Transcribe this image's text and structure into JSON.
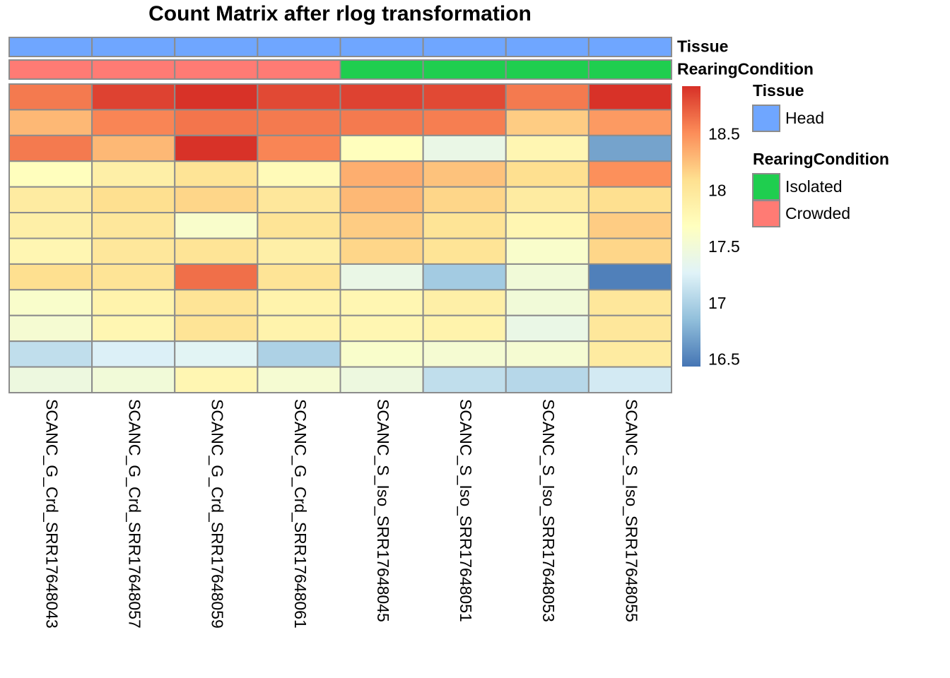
{
  "chart_data": {
    "type": "heatmap",
    "title": "Count Matrix after rlog transformation",
    "columns": [
      "SCANC_G_Crd_SRR17648043",
      "SCANC_G_Crd_SRR17648057",
      "SCANC_G_Crd_SRR17648059",
      "SCANC_G_Crd_SRR17648061",
      "SCANC_S_Iso_SRR17648045",
      "SCANC_S_Iso_SRR17648051",
      "SCANC_S_Iso_SRR17648053",
      "SCANC_S_Iso_SRR17648055"
    ],
    "values": [
      [
        18.6,
        18.85,
        18.92,
        18.82,
        18.85,
        18.82,
        18.6,
        18.92
      ],
      [
        18.3,
        18.55,
        18.62,
        18.6,
        18.6,
        18.58,
        18.2,
        18.45
      ],
      [
        18.6,
        18.3,
        18.92,
        18.55,
        17.7,
        17.4,
        17.8,
        16.7
      ],
      [
        17.7,
        17.9,
        18.05,
        17.75,
        18.35,
        18.25,
        18.1,
        18.5
      ],
      [
        17.95,
        18.1,
        18.15,
        18.0,
        18.3,
        18.15,
        17.95,
        18.1
      ],
      [
        17.9,
        18.0,
        17.6,
        18.05,
        18.2,
        18.05,
        17.8,
        18.2
      ],
      [
        17.8,
        18.0,
        18.05,
        17.9,
        18.15,
        18.05,
        17.6,
        18.15
      ],
      [
        18.1,
        18.05,
        18.65,
        18.05,
        17.4,
        16.95,
        17.5,
        16.5
      ],
      [
        17.6,
        17.85,
        18.05,
        17.85,
        17.8,
        17.9,
        17.5,
        18.0
      ],
      [
        17.55,
        17.8,
        18.05,
        17.85,
        17.8,
        17.85,
        17.4,
        18.0
      ],
      [
        17.1,
        17.25,
        17.3,
        17.0,
        17.6,
        17.55,
        17.55,
        17.95
      ],
      [
        17.45,
        17.5,
        17.8,
        17.55,
        17.45,
        17.1,
        17.05,
        17.2
      ]
    ],
    "zlim": [
      16.44,
      18.93
    ],
    "zticks": [
      16.5,
      17,
      17.5,
      18,
      18.5
    ],
    "colorscale": [
      "#4575B4",
      "#91BFDB",
      "#E0F3F8",
      "#FFFFBF",
      "#FEE090",
      "#FC8D59",
      "#D73027"
    ],
    "annotations": [
      {
        "name": "Tissue",
        "levels": [
          {
            "label": "Head",
            "color": "#6FA6FF"
          }
        ],
        "values": [
          "Head",
          "Head",
          "Head",
          "Head",
          "Head",
          "Head",
          "Head",
          "Head"
        ]
      },
      {
        "name": "RearingCondition",
        "levels": [
          {
            "label": "Isolated",
            "color": "#1FCE4F"
          },
          {
            "label": "Crowded",
            "color": "#FF7B74"
          }
        ],
        "values": [
          "Crowded",
          "Crowded",
          "Crowded",
          "Crowded",
          "Isolated",
          "Isolated",
          "Isolated",
          "Isolated"
        ]
      }
    ]
  }
}
